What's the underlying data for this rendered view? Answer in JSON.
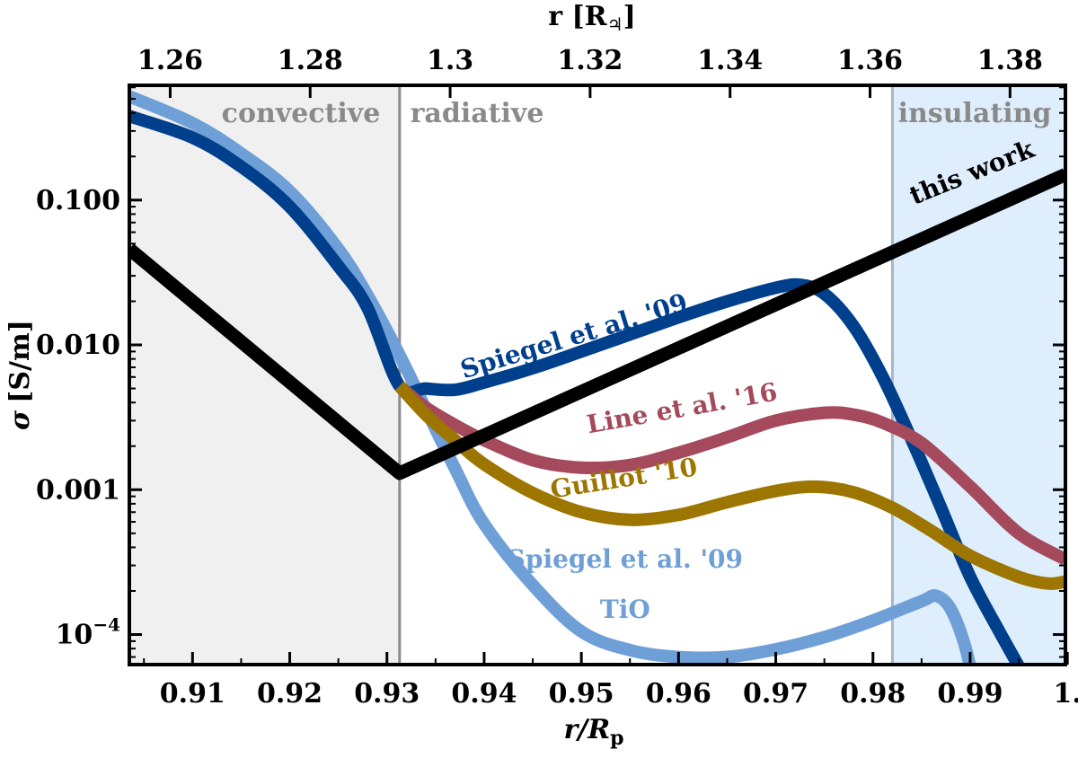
{
  "chart_data": {
    "type": "line",
    "xlabel": "r/R",
    "xlabel_subscript": "p",
    "ylabel_symbol": "σ",
    "ylabel_units": "[S/m]",
    "top_xlabel": "r [R",
    "top_xlabel_subscript": "♃",
    "top_xlabel_close": "]",
    "y_scale": "log",
    "xlim": [
      0.9035,
      0.9998
    ],
    "ylim": [
      6.2e-05,
      0.62
    ],
    "x_ticks": [
      {
        "value": 0.91,
        "label": "0.91"
      },
      {
        "value": 0.92,
        "label": "0.92"
      },
      {
        "value": 0.93,
        "label": "0.93"
      },
      {
        "value": 0.94,
        "label": "0.94"
      },
      {
        "value": 0.95,
        "label": "0.95"
      },
      {
        "value": 0.96,
        "label": "0.96"
      },
      {
        "value": 0.97,
        "label": "0.97"
      },
      {
        "value": 0.98,
        "label": "0.98"
      },
      {
        "value": 0.99,
        "label": "0.99"
      },
      {
        "value": 1.0,
        "label": "1."
      }
    ],
    "top_x_ticks": [
      {
        "value": 0.9077,
        "label": "1.26"
      },
      {
        "value": 0.9221,
        "label": "1.28"
      },
      {
        "value": 0.9365,
        "label": "1.3"
      },
      {
        "value": 0.9509,
        "label": "1.32"
      },
      {
        "value": 0.9653,
        "label": "1.34"
      },
      {
        "value": 0.9797,
        "label": "1.36"
      },
      {
        "value": 0.9941,
        "label": "1.38"
      }
    ],
    "y_ticks": [
      {
        "value": 0.1,
        "label": "0.100"
      },
      {
        "value": 0.01,
        "label": "0.010"
      },
      {
        "value": 0.001,
        "label": "0.001"
      },
      {
        "value": 0.0001,
        "label_base": "10",
        "label_exp": "−4"
      }
    ],
    "regions": [
      {
        "name": "convective",
        "label": "convective",
        "x_from": 0.9035,
        "x_to": 0.9313,
        "color": "#f0f0f0",
        "boundary_color": "#8c8c8c"
      },
      {
        "name": "radiative",
        "label": "radiative",
        "x_from": 0.9313,
        "x_to": 0.982,
        "color": "#ffffff",
        "boundary_color": "#a7b6c4"
      },
      {
        "name": "insulating",
        "label": "insulating",
        "x_from": 0.982,
        "x_to": 0.9998,
        "color": "#dfeefc",
        "boundary_color": "#a7b6c4"
      }
    ],
    "series": [
      {
        "name": "Spiegel et al. '09 TiO",
        "label_line1": "Spiegel et al. '09",
        "label_line2": "TiO",
        "color": "#6e9fd6",
        "points": [
          [
            0.9035,
            0.52
          ],
          [
            0.91,
            0.34
          ],
          [
            0.915,
            0.21
          ],
          [
            0.92,
            0.115
          ],
          [
            0.925,
            0.046
          ],
          [
            0.928,
            0.022
          ],
          [
            0.9313,
            0.0085
          ],
          [
            0.934,
            0.0036
          ],
          [
            0.937,
            0.0014
          ],
          [
            0.94,
            0.00058
          ],
          [
            0.945,
            0.00022
          ],
          [
            0.95,
            0.000105
          ],
          [
            0.955,
            7.8e-05
          ],
          [
            0.96,
            7e-05
          ],
          [
            0.965,
            7e-05
          ],
          [
            0.97,
            7.9e-05
          ],
          [
            0.975,
            9.6e-05
          ],
          [
            0.98,
            0.000125
          ],
          [
            0.985,
            0.00017
          ],
          [
            0.9865,
            0.000185
          ],
          [
            0.988,
            0.00015
          ],
          [
            0.9895,
            8.2e-05
          ],
          [
            0.9905,
            4e-05
          ]
        ]
      },
      {
        "name": "Spiegel et al. '09",
        "label": "Spiegel et al. '09",
        "color": "#003f8c",
        "points": [
          [
            0.9035,
            0.38
          ],
          [
            0.91,
            0.27
          ],
          [
            0.915,
            0.17
          ],
          [
            0.92,
            0.09
          ],
          [
            0.925,
            0.035
          ],
          [
            0.928,
            0.018
          ],
          [
            0.9313,
            0.0052
          ],
          [
            0.934,
            0.005
          ],
          [
            0.937,
            0.0049
          ],
          [
            0.94,
            0.0055
          ],
          [
            0.945,
            0.0069
          ],
          [
            0.95,
            0.009
          ],
          [
            0.955,
            0.0118
          ],
          [
            0.96,
            0.0155
          ],
          [
            0.965,
            0.02
          ],
          [
            0.97,
            0.0248
          ],
          [
            0.9725,
            0.026
          ],
          [
            0.975,
            0.0225
          ],
          [
            0.978,
            0.0135
          ],
          [
            0.981,
            0.006
          ],
          [
            0.984,
            0.0022
          ],
          [
            0.987,
            0.00075
          ],
          [
            0.99,
            0.00025
          ],
          [
            0.993,
            0.000105
          ],
          [
            0.996,
            4.6e-05
          ]
        ]
      },
      {
        "name": "Line et al. '16",
        "label": "Line et al. '16",
        "color": "#a44a5c",
        "points": [
          [
            0.9313,
            0.0052
          ],
          [
            0.934,
            0.0037
          ],
          [
            0.937,
            0.0028
          ],
          [
            0.94,
            0.0022
          ],
          [
            0.945,
            0.0016
          ],
          [
            0.95,
            0.00142
          ],
          [
            0.955,
            0.00148
          ],
          [
            0.96,
            0.0018
          ],
          [
            0.965,
            0.0023
          ],
          [
            0.97,
            0.003
          ],
          [
            0.975,
            0.0034
          ],
          [
            0.978,
            0.0033
          ],
          [
            0.981,
            0.0029
          ],
          [
            0.985,
            0.0021
          ],
          [
            0.99,
            0.00105
          ],
          [
            0.995,
            0.0005
          ],
          [
            0.9998,
            0.00033
          ]
        ]
      },
      {
        "name": "Guillot '10",
        "label": "Guillot '10",
        "color": "#9c7600",
        "points": [
          [
            0.9313,
            0.0052
          ],
          [
            0.934,
            0.0033
          ],
          [
            0.937,
            0.0022
          ],
          [
            0.94,
            0.0015
          ],
          [
            0.945,
            0.00095
          ],
          [
            0.95,
            0.0007
          ],
          [
            0.955,
            0.00062
          ],
          [
            0.96,
            0.00067
          ],
          [
            0.965,
            0.00082
          ],
          [
            0.97,
            0.00098
          ],
          [
            0.974,
            0.00105
          ],
          [
            0.978,
            0.00096
          ],
          [
            0.982,
            0.00075
          ],
          [
            0.986,
            0.00052
          ],
          [
            0.99,
            0.00035
          ],
          [
            0.995,
            0.00025
          ],
          [
            0.998,
            0.000225
          ],
          [
            0.9998,
            0.000232
          ]
        ]
      },
      {
        "name": "this work",
        "label": "this work",
        "color": "#000000",
        "points": [
          [
            0.9035,
            0.046
          ],
          [
            0.9313,
            0.0013
          ],
          [
            0.9998,
            0.15
          ]
        ]
      }
    ],
    "annotations": [
      {
        "name": "spiegel-tio-label",
        "series": "Spiegel et al. '09 TiO",
        "x": 0.9545,
        "y": 0.00029,
        "y2": 0.00013,
        "rotate": 0
      },
      {
        "name": "spiegel-label",
        "series": "Spiegel et al. '09",
        "x": 0.9495,
        "y": 0.0101,
        "rotate": -17
      },
      {
        "name": "line-label",
        "series": "Line et al. '16",
        "x": 0.9605,
        "y": 0.0032,
        "rotate": -10
      },
      {
        "name": "guillot-label",
        "series": "Guillot '10",
        "x": 0.9545,
        "y": 0.00105,
        "rotate": -9
      },
      {
        "name": "this-work-label",
        "series": "this work",
        "x": 0.9905,
        "y": 0.137,
        "rotate": -22
      }
    ]
  }
}
